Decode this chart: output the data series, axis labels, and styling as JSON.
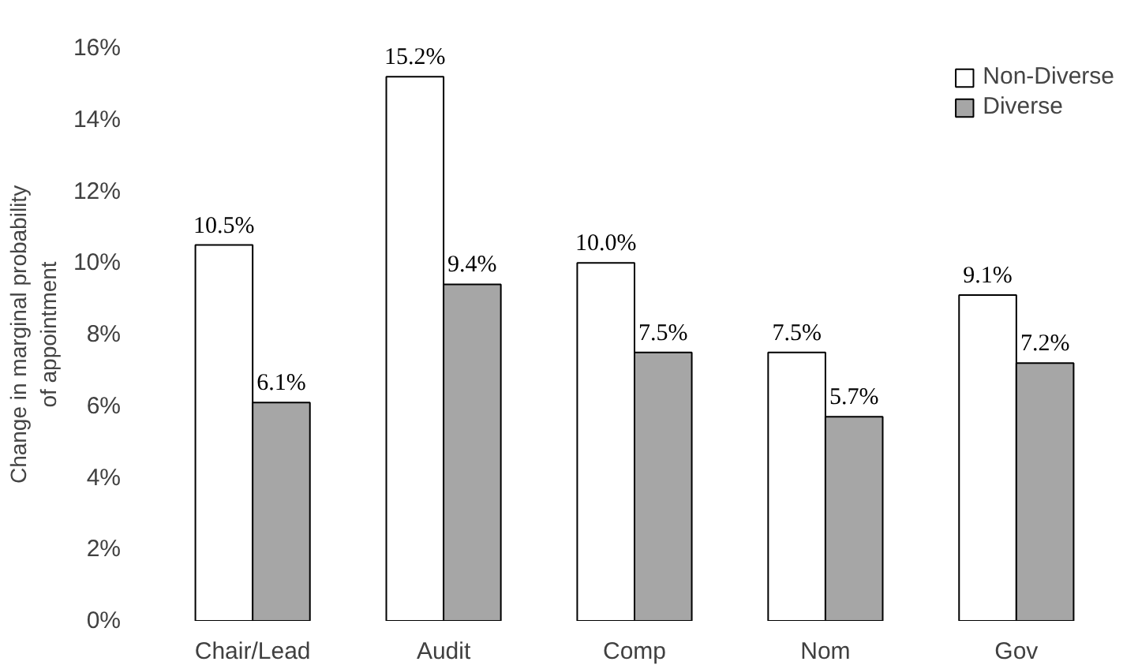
{
  "chart_data": {
    "type": "bar",
    "ylabel": "Change in marginal probability\nof appointment",
    "categories": [
      "Chair/Lead",
      "Audit",
      "Comp",
      "Nom",
      "Gov"
    ],
    "series": [
      {
        "name": "Non-Diverse",
        "color": "#ffffff",
        "values": [
          10.5,
          15.2,
          10.0,
          7.5,
          9.1
        ]
      },
      {
        "name": "Diverse",
        "color": "#a6a6a6",
        "values": [
          6.1,
          9.4,
          7.5,
          5.7,
          7.2
        ]
      }
    ],
    "value_labels": [
      [
        "10.5%",
        "15.2%",
        "10.0%",
        "7.5%",
        "9.1%"
      ],
      [
        "6.1%",
        "9.4%",
        "7.5%",
        "5.7%",
        "7.2%"
      ]
    ],
    "ylim": [
      0,
      16
    ],
    "yticks": [
      {
        "value": 0,
        "label": "0%"
      },
      {
        "value": 2,
        "label": "2%"
      },
      {
        "value": 4,
        "label": "4%"
      },
      {
        "value": 6,
        "label": "6%"
      },
      {
        "value": 8,
        "label": "8%"
      },
      {
        "value": 10,
        "label": "10%"
      },
      {
        "value": 12,
        "label": "12%"
      },
      {
        "value": 14,
        "label": "14%"
      },
      {
        "value": 16,
        "label": "16%"
      }
    ],
    "grid": false,
    "legend": "top right"
  }
}
